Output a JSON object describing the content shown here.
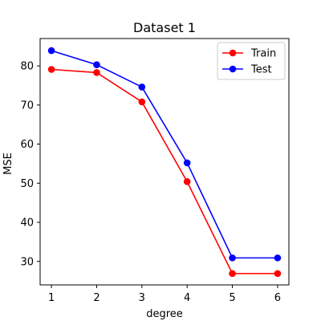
{
  "chart_data": {
    "type": "line",
    "title": "Dataset 1",
    "xlabel": "degree",
    "ylabel": "MSE",
    "x": [
      1,
      2,
      3,
      4,
      5,
      6
    ],
    "xticks": [
      1,
      2,
      3,
      4,
      5,
      6
    ],
    "yticks": [
      30,
      40,
      50,
      60,
      70,
      80
    ],
    "xlim": [
      0.75,
      6.25
    ],
    "ylim": [
      24,
      87
    ],
    "grid": false,
    "legend_position": "top-right",
    "series": [
      {
        "name": "Train",
        "color": "#ff0000",
        "marker": "circle",
        "values": [
          79.1,
          78.3,
          70.8,
          50.4,
          26.9,
          26.9
        ]
      },
      {
        "name": "Test",
        "color": "#0000ff",
        "marker": "circle",
        "values": [
          83.9,
          80.3,
          74.6,
          55.2,
          30.9,
          30.9
        ]
      }
    ]
  }
}
